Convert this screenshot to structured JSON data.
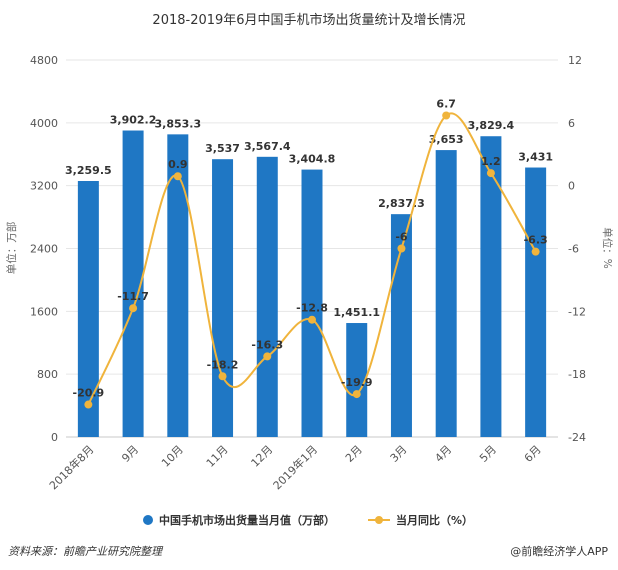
{
  "footer": {
    "source": "资料来源：前瞻产业研究院整理",
    "credit": "@前瞻经济学人APP"
  },
  "chart_data": {
    "type": "bar",
    "title": "2018-2019年6月中国手机市场出货量统计及增长情况",
    "categories": [
      "2018年8月",
      "9月",
      "10月",
      "11月",
      "12月",
      "2019年1月",
      "2月",
      "3月",
      "4月",
      "5月",
      "6月"
    ],
    "ylabel": "单位：万部",
    "y2label": "单位：%",
    "ylim": [
      0,
      4800
    ],
    "yticks": [
      0,
      800,
      1600,
      2400,
      3200,
      4000,
      4800
    ],
    "y2lim": [
      -24,
      12
    ],
    "y2ticks": [
      -24,
      -18,
      -12,
      -6,
      0,
      6,
      12
    ],
    "grid": true,
    "legend_position": "bottom",
    "series": [
      {
        "name": "中国手机市场出货量当月值（万部）",
        "type": "bar",
        "axis": "left",
        "color": "#1f77c4",
        "values": [
          3259.5,
          3902.2,
          3853.3,
          3537,
          3567.4,
          3404.8,
          1451.1,
          2837.3,
          3653,
          3829.4,
          3431
        ],
        "labels": [
          "3,259.5",
          "3,902.2",
          "3,853.3",
          "3,537",
          "3,567.4",
          "3,404.8",
          "1,451.1",
          "2,837.3",
          "3,653",
          "3,829.4",
          "3,431"
        ]
      },
      {
        "name": "当月同比（%）",
        "type": "line",
        "axis": "right",
        "color": "#f0b43c",
        "values": [
          -20.9,
          -11.7,
          0.9,
          -18.2,
          -16.3,
          -12.8,
          -19.9,
          -6,
          6.7,
          1.2,
          -6.3
        ],
        "labels": [
          "-20.9",
          "-11.7",
          "0.9",
          "-18.2",
          "-16.3",
          "-12.8",
          "-19.9",
          "-6",
          "6.7",
          "1.2",
          "-6.3"
        ]
      }
    ]
  }
}
